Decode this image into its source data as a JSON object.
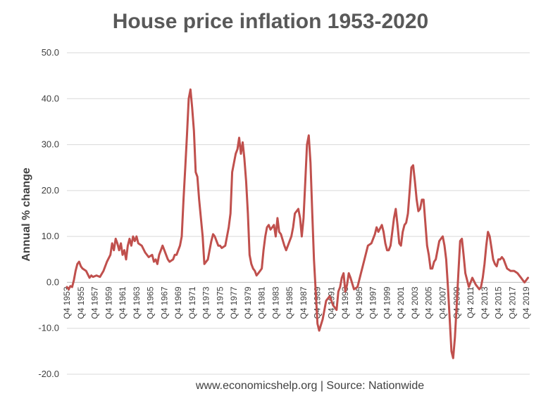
{
  "source_text": "www.economicshelp.org | Source: Nationwide",
  "colors": {
    "series": "#C0504D",
    "grid": "#D9D9D9",
    "text": "#404040",
    "title": "#595959"
  },
  "chart_data": {
    "type": "line",
    "title": "House price inflation 1953-2020",
    "xlabel": "",
    "ylabel": "Annual % change",
    "ylim": [
      -20,
      50
    ],
    "yticks": [
      "50.0",
      "40.0",
      "30.0",
      "20.0",
      "10.0",
      "0.0",
      "-10.0",
      "-20.0"
    ],
    "ytick_values": [
      50,
      40,
      30,
      20,
      10,
      0,
      -10,
      -20
    ],
    "grid": true,
    "xticks": [
      "Q4 1953",
      "Q4 1955",
      "Q4 1957",
      "Q4 1959",
      "Q4 1961",
      "Q4 1963",
      "Q4 1965",
      "Q4 1967",
      "Q4 1969",
      "Q4 1971",
      "Q4 1973",
      "Q4 1975",
      "Q4 1977",
      "Q4 1979",
      "Q4 1981",
      "Q4 1983",
      "Q4 1985",
      "Q4 1987",
      "Q4 1989",
      "Q4 1991",
      "Q4 1993",
      "Q4 1995",
      "Q4 1997",
      "Q4 1999",
      "Q4 2001",
      "Q4 2003",
      "Q4 2005",
      "Q4 2007",
      "Q4 2009",
      "Q4 2011",
      "Q4 2013",
      "Q4 2015",
      "Q4 2017",
      "Q4 2019"
    ],
    "xtick_values": [
      1953.75,
      1955.75,
      1957.75,
      1959.75,
      1961.75,
      1963.75,
      1965.75,
      1967.75,
      1969.75,
      1971.75,
      1973.75,
      1975.75,
      1977.75,
      1979.75,
      1981.75,
      1983.75,
      1985.75,
      1987.75,
      1989.75,
      1991.75,
      1993.75,
      1995.75,
      1997.75,
      1999.75,
      2001.75,
      2003.75,
      2005.75,
      2007.75,
      2009.75,
      2011.75,
      2013.75,
      2015.75,
      2017.75,
      2019.75
    ],
    "xlim": [
      1953.75,
      2020.25
    ],
    "series": [
      {
        "x": [
          1953.75,
          1954.0,
          1954.25,
          1954.5,
          1954.75,
          1955.0,
          1955.25,
          1955.5,
          1955.75,
          1956.0,
          1956.5,
          1957.0,
          1957.25,
          1957.5,
          1958.0,
          1958.5,
          1959.0,
          1959.5,
          1960.0,
          1960.25,
          1960.5,
          1960.75,
          1961.0,
          1961.25,
          1961.5,
          1961.75,
          1962.0,
          1962.25,
          1962.5,
          1962.75,
          1963.0,
          1963.25,
          1963.5,
          1963.75,
          1964.0,
          1964.5,
          1965.0,
          1965.5,
          1966.0,
          1966.25,
          1966.5,
          1966.75,
          1967.0,
          1967.25,
          1967.5,
          1967.75,
          1968.0,
          1968.25,
          1968.5,
          1969.0,
          1969.25,
          1969.5,
          1970.0,
          1970.25,
          1970.5,
          1970.75,
          1971.0,
          1971.25,
          1971.5,
          1971.75,
          1972.0,
          1972.25,
          1972.5,
          1972.75,
          1973.0,
          1973.25,
          1973.5,
          1974.0,
          1974.25,
          1974.5,
          1974.75,
          1975.0,
          1975.25,
          1975.5,
          1975.75,
          1976.0,
          1976.5,
          1977.0,
          1977.25,
          1977.5,
          1978.0,
          1978.25,
          1978.5,
          1978.75,
          1979.0,
          1979.25,
          1979.5,
          1979.75,
          1980.0,
          1980.25,
          1980.5,
          1980.75,
          1981.0,
          1981.25,
          1981.5,
          1981.75,
          1982.0,
          1982.25,
          1982.5,
          1982.75,
          1983.0,
          1983.25,
          1983.5,
          1983.75,
          1984.0,
          1984.25,
          1984.5,
          1985.0,
          1985.25,
          1985.5,
          1986.0,
          1986.25,
          1986.5,
          1987.0,
          1987.25,
          1987.5,
          1987.75,
          1988.0,
          1988.25,
          1988.5,
          1988.75,
          1989.0,
          1989.25,
          1989.5,
          1989.75,
          1990.0,
          1990.5,
          1991.0,
          1991.5,
          1992.0,
          1992.5,
          1992.75,
          1993.0,
          1993.25,
          1993.5,
          1993.75,
          1994.0,
          1994.25,
          1994.5,
          1995.0,
          1995.5,
          1996.0,
          1996.5,
          1997.0,
          1997.5,
          1998.0,
          1998.25,
          1998.5,
          1999.0,
          1999.25,
          1999.5,
          1999.75,
          2000.0,
          2000.25,
          2000.5,
          2000.75,
          2001.0,
          2001.25,
          2001.5,
          2001.75,
          2002.0,
          2002.25,
          2002.5,
          2002.75,
          2003.0,
          2003.25,
          2003.5,
          2003.75,
          2004.0,
          2004.25,
          2004.5,
          2004.75,
          2005.0,
          2005.25,
          2005.5,
          2005.75,
          2006.0,
          2006.25,
          2006.5,
          2006.75,
          2007.0,
          2007.25,
          2007.5,
          2007.75,
          2008.0,
          2008.25,
          2008.5,
          2008.75,
          2009.0,
          2009.25,
          2009.5,
          2009.75,
          2010.0,
          2010.25,
          2010.5,
          2010.75,
          2011.0,
          2011.5,
          2012.0,
          2012.5,
          2013.0,
          2013.25,
          2013.5,
          2013.75,
          2014.0,
          2014.25,
          2014.5,
          2014.75,
          2015.0,
          2015.25,
          2015.5,
          2015.75,
          2016.0,
          2016.25,
          2016.5,
          2016.75,
          2017.0,
          2017.5,
          2018.0,
          2018.5,
          2019.0,
          2019.25,
          2019.5,
          2019.75,
          2020.0
        ],
        "values": [
          -1.0,
          -1.5,
          -0.8,
          -1.0,
          0.5,
          2.5,
          4.0,
          4.5,
          3.5,
          3.0,
          2.5,
          1.0,
          1.5,
          1.2,
          1.5,
          1.2,
          2.5,
          4.5,
          6.0,
          8.5,
          7.0,
          9.5,
          8.5,
          7.0,
          8.5,
          6.0,
          7.0,
          5.0,
          8.0,
          9.5,
          8.0,
          10.0,
          9.0,
          10.0,
          8.5,
          8.0,
          6.5,
          5.5,
          6.0,
          4.5,
          5.0,
          4.0,
          6.0,
          7.0,
          8.0,
          7.0,
          6.0,
          5.0,
          4.5,
          5.0,
          6.0,
          6.0,
          8.0,
          10.0,
          18.0,
          25.0,
          32.0,
          40.0,
          42.0,
          38.0,
          33.0,
          24.0,
          23.0,
          18.0,
          14.0,
          10.0,
          4.0,
          5.0,
          7.0,
          9.0,
          10.5,
          10.0,
          9.0,
          8.0,
          8.0,
          7.5,
          8.0,
          12.0,
          15.0,
          24.0,
          28.0,
          29.0,
          31.5,
          28.0,
          30.5,
          27.0,
          22.0,
          15.0,
          6.0,
          4.0,
          3.0,
          2.5,
          1.5,
          2.0,
          2.5,
          3.0,
          7.0,
          10.0,
          12.0,
          12.5,
          11.5,
          12.0,
          12.5,
          10.0,
          14.0,
          11.0,
          10.5,
          8.0,
          7.0,
          8.0,
          10.0,
          12.0,
          15.0,
          16.0,
          14.0,
          10.0,
          14.0,
          22.0,
          30.0,
          32.0,
          26.0,
          15.0,
          5.0,
          -2.0,
          -9.0,
          -10.5,
          -8.0,
          -4.0,
          -3.0,
          -5.0,
          -6.0,
          -2.0,
          -1.0,
          1.0,
          2.0,
          -2.0,
          -0.5,
          2.0,
          1.0,
          -1.5,
          -1.0,
          2.0,
          5.0,
          8.0,
          8.5,
          10.5,
          12.0,
          11.0,
          12.5,
          11.0,
          8.5,
          7.0,
          7.0,
          8.0,
          11.0,
          14.0,
          16.0,
          12.5,
          8.5,
          8.0,
          11.0,
          12.5,
          13.0,
          15.0,
          20.0,
          25.0,
          25.5,
          22.0,
          18.0,
          15.5,
          16.0,
          18.0,
          18.0,
          13.0,
          8.0,
          6.0,
          3.0,
          3.0,
          4.5,
          5.0,
          7.0,
          9.0,
          9.5,
          10.0,
          8.0,
          5.0,
          -1.0,
          -8.0,
          -15.0,
          -16.5,
          -12.0,
          -5.0,
          2.0,
          9.0,
          9.5,
          6.0,
          2.0,
          -1.0,
          1.0,
          -0.5,
          -1.5,
          -1.0,
          1.0,
          4.0,
          8.0,
          11.0,
          10.0,
          7.5,
          5.0,
          4.0,
          3.5,
          5.0,
          5.0,
          5.5,
          5.0,
          4.0,
          3.0,
          2.5,
          2.5,
          2.0,
          1.0,
          0.5,
          0.0,
          0.5,
          1.0
        ]
      }
    ]
  }
}
